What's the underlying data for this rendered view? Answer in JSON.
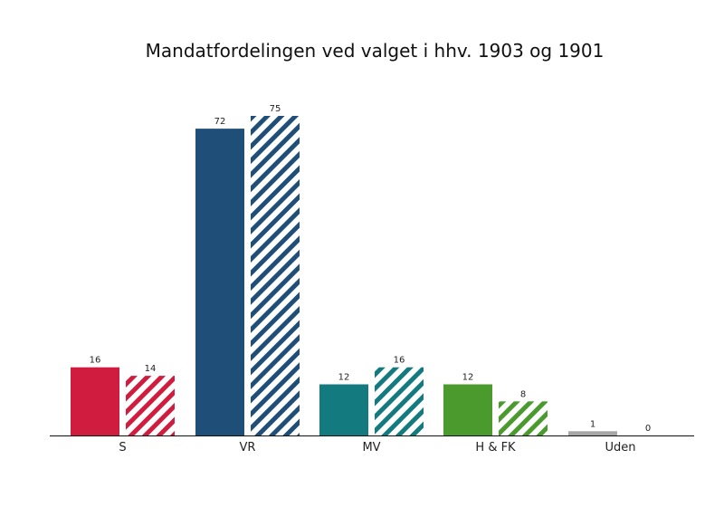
{
  "chart_data": {
    "type": "bar",
    "title": "Mandatfordelingen ved valget i hhv. 1903 og 1901",
    "categories": [
      "S",
      "VR",
      "MV",
      "H & FK",
      "Uden"
    ],
    "colors": [
      "#d01c3e",
      "#1f4e79",
      "#137a7f",
      "#4a9a2e",
      "#a6a6a6"
    ],
    "series": [
      {
        "values": [
          16,
          72,
          12,
          12,
          1
        ],
        "style": "solid"
      },
      {
        "values": [
          14,
          75,
          16,
          8,
          0
        ],
        "style": "hatched"
      }
    ],
    "ylim": [
      0,
      75
    ],
    "grid": false,
    "legend": "none",
    "xlabel": "",
    "ylabel": ""
  }
}
